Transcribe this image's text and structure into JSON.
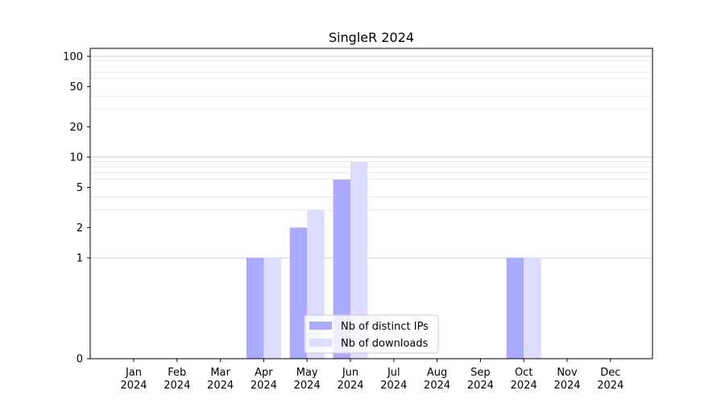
{
  "chart_data": {
    "type": "bar",
    "title": "SingleR 2024",
    "xlabel": "",
    "ylabel": "",
    "yscale": "symlog",
    "ylim": [
      0,
      120
    ],
    "yticks": [
      0,
      1,
      2,
      5,
      10,
      20,
      50,
      100
    ],
    "grid": "horizontal",
    "legend_position": "lower-center",
    "categories": [
      {
        "month": "Jan",
        "year": "2024"
      },
      {
        "month": "Feb",
        "year": "2024"
      },
      {
        "month": "Mar",
        "year": "2024"
      },
      {
        "month": "Apr",
        "year": "2024"
      },
      {
        "month": "May",
        "year": "2024"
      },
      {
        "month": "Jun",
        "year": "2024"
      },
      {
        "month": "Jul",
        "year": "2024"
      },
      {
        "month": "Aug",
        "year": "2024"
      },
      {
        "month": "Sep",
        "year": "2024"
      },
      {
        "month": "Oct",
        "year": "2024"
      },
      {
        "month": "Nov",
        "year": "2024"
      },
      {
        "month": "Dec",
        "year": "2024"
      }
    ],
    "series": [
      {
        "name": "Nb of distinct IPs",
        "color": "#aaaaff",
        "values": [
          0,
          0,
          0,
          1,
          2,
          6,
          0,
          0,
          0,
          1,
          0,
          0
        ]
      },
      {
        "name": "Nb of downloads",
        "color": "#ddddff",
        "values": [
          0,
          0,
          0,
          1,
          3,
          9,
          0,
          0,
          0,
          1,
          0,
          0
        ]
      }
    ]
  }
}
